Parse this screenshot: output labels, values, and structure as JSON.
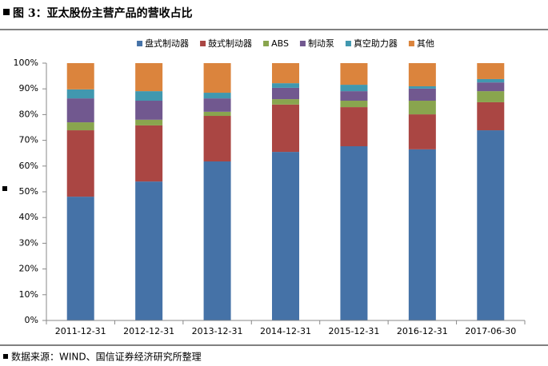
{
  "chart_data": {
    "type": "stacked_bar",
    "title": "图 3：亚太股份主营产品的营收占比",
    "source": "数据来源：WIND、国信证券经济研究所整理",
    "categories": [
      "2011-12-31",
      "2012-12-31",
      "2013-12-31",
      "2014-12-31",
      "2015-12-31",
      "2016-12-31",
      "2017-06-30"
    ],
    "series": [
      {
        "name": "盘式制动器",
        "color": "#4572a7",
        "values": [
          48.1,
          54.0,
          61.8,
          65.5,
          67.7,
          66.5,
          73.9
        ]
      },
      {
        "name": "鼓式制动器",
        "color": "#aa4643",
        "values": [
          25.8,
          21.8,
          17.7,
          18.4,
          15.2,
          13.6,
          10.9
        ]
      },
      {
        "name": "ABS",
        "color": "#89a54e",
        "values": [
          3.1,
          2.2,
          1.6,
          2.1,
          2.5,
          5.3,
          4.3
        ]
      },
      {
        "name": "制动泵",
        "color": "#71588f",
        "values": [
          9.3,
          7.4,
          5.2,
          4.4,
          3.7,
          4.7,
          3.4
        ]
      },
      {
        "name": "真空助力器",
        "color": "#4198af",
        "values": [
          3.5,
          3.7,
          2.2,
          1.8,
          2.5,
          0.9,
          1.3
        ]
      },
      {
        "name": "其他",
        "color": "#db843d",
        "values": [
          10.2,
          10.9,
          11.5,
          7.8,
          8.4,
          9.0,
          6.2
        ]
      }
    ],
    "ylim": [
      0,
      100
    ],
    "yticks": [
      {
        "value": 0,
        "label": "0%"
      },
      {
        "value": 10,
        "label": "10%"
      },
      {
        "value": 20,
        "label": "20%"
      },
      {
        "value": 30,
        "label": "30%"
      },
      {
        "value": 40,
        "label": "40%"
      },
      {
        "value": 50,
        "label": "50%"
      },
      {
        "value": 60,
        "label": "60%"
      },
      {
        "value": 70,
        "label": "70%"
      },
      {
        "value": 80,
        "label": "80%"
      },
      {
        "value": 90,
        "label": "90%"
      },
      {
        "value": 100,
        "label": "100%"
      }
    ],
    "grid": false
  }
}
